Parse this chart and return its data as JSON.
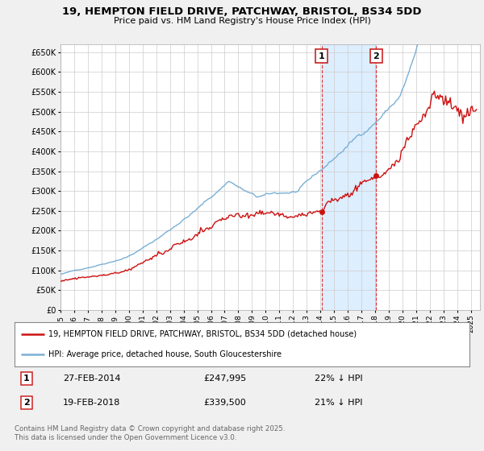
{
  "title": "19, HEMPTON FIELD DRIVE, PATCHWAY, BRISTOL, BS34 5DD",
  "subtitle": "Price paid vs. HM Land Registry's House Price Index (HPI)",
  "bg_color": "#f0f0f0",
  "plot_bg_color": "#ffffff",
  "grid_color": "#cccccc",
  "hpi_color": "#7ab0d4",
  "price_color": "#cc1111",
  "highlight_bg": "#ddeeff",
  "marker1_date": "27-FEB-2014",
  "marker1_price": "£247,995",
  "marker1_hpi": "22% ↓ HPI",
  "marker2_date": "19-FEB-2018",
  "marker2_price": "£339,500",
  "marker2_hpi": "21% ↓ HPI",
  "legend_label1": "19, HEMPTON FIELD DRIVE, PATCHWAY, BRISTOL, BS34 5DD (detached house)",
  "legend_label2": "HPI: Average price, detached house, South Gloucestershire",
  "footnote": "Contains HM Land Registry data © Crown copyright and database right 2025.\nThis data is licensed under the Open Government Licence v3.0.",
  "ylim": [
    0,
    670000
  ],
  "yticks": [
    0,
    50000,
    100000,
    150000,
    200000,
    250000,
    300000,
    350000,
    400000,
    450000,
    500000,
    550000,
    600000,
    650000
  ],
  "ytick_labels": [
    "£0",
    "£50K",
    "£100K",
    "£150K",
    "£200K",
    "£250K",
    "£300K",
    "£350K",
    "£400K",
    "£450K",
    "£500K",
    "£550K",
    "£600K",
    "£650K"
  ]
}
